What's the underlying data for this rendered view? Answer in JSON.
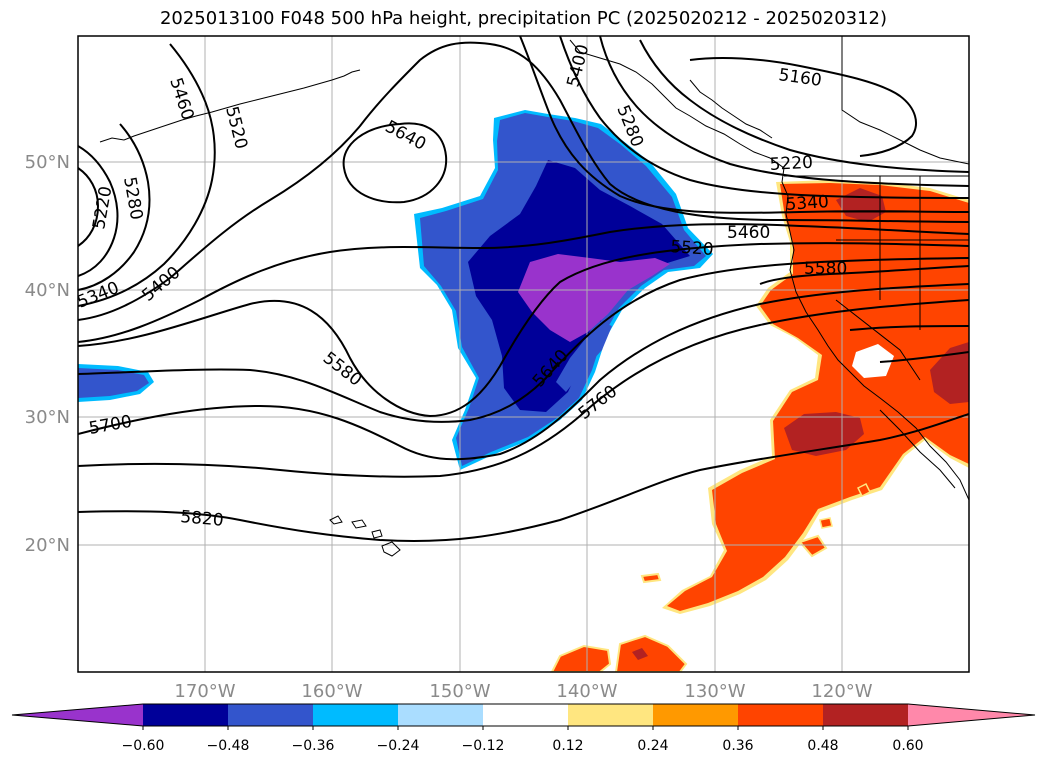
{
  "title": "2025013100 F048 500 hPa height, precipitation PC (2025020212 - 2025020312)",
  "latitude_labels": [
    "50°N",
    "40°N",
    "30°N",
    "20°N"
  ],
  "longitude_labels": [
    "170°W",
    "160°W",
    "150°W",
    "140°W",
    "130°W",
    "120°W"
  ],
  "height_contour_labels": [
    "5160",
    "5220",
    "5220",
    "5280",
    "5280",
    "5340",
    "5340",
    "5400",
    "5400",
    "5460",
    "5460",
    "5520",
    "5520",
    "5580",
    "5580",
    "5640",
    "5640",
    "5700",
    "5760",
    "5820"
  ],
  "colorbar": {
    "tick_labels": [
      "−0.60",
      "−0.48",
      "−0.36",
      "−0.24",
      "−0.12",
      "0.12",
      "0.24",
      "0.36",
      "0.48",
      "0.60"
    ],
    "colors": [
      "#9933cc",
      "#000099",
      "#3355cc",
      "#00bbff",
      "#aaddff",
      "#ffffff",
      "#ffe680",
      "#ff9900",
      "#ff4400",
      "#b22222",
      "#ff88aa"
    ]
  },
  "colors": {
    "grid": "#b0b0b0",
    "coast": "#000000",
    "contour": "#000000"
  }
}
